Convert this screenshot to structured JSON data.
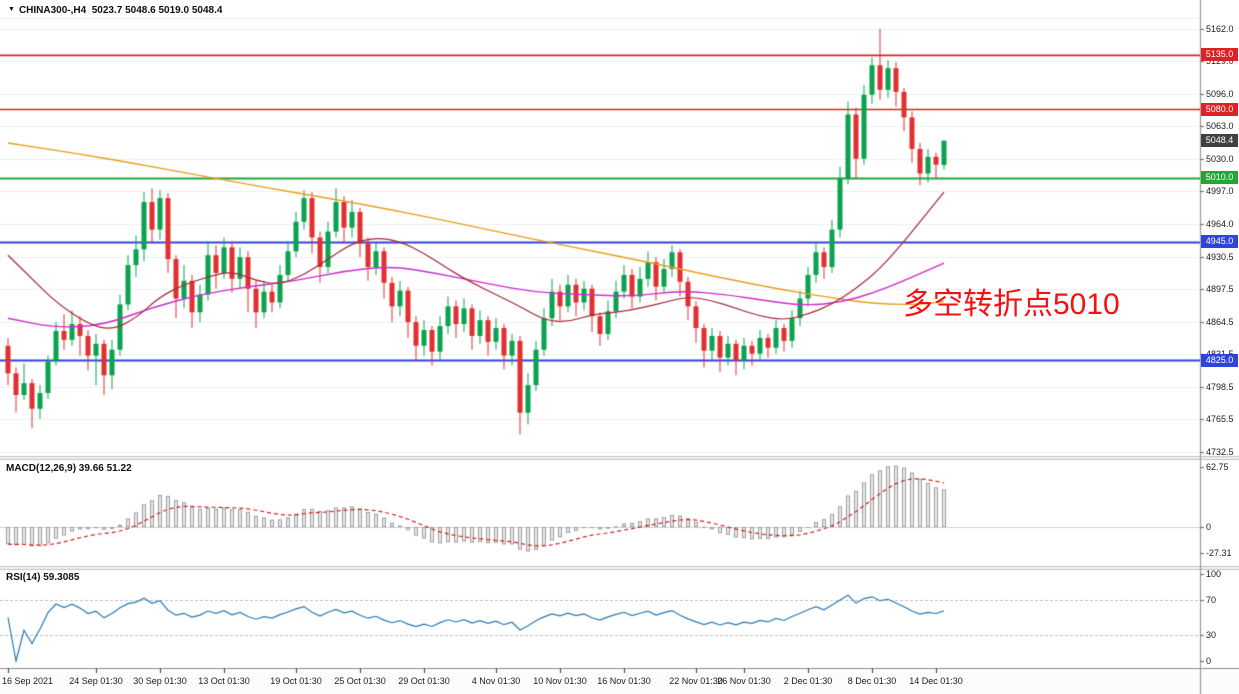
{
  "window": {
    "collapse_icon": "▼",
    "symbol_period": "CHINA300-,H4",
    "ohlc_text": "5023.7 5048.6 5019.0 5048.4"
  },
  "annotation": {
    "text": "多空转折点5010",
    "color": "#f31111"
  },
  "colors": {
    "up": "#0aa34f",
    "down": "#e03030",
    "ma_fast": "#a52a3a",
    "ma_mid": "#cc2ecc",
    "ma_slow": "#e8a020",
    "macd_bar_fill": "#e8e8e8",
    "macd_bar_stroke": "#a0a0a0",
    "macd_signal": "#d42222",
    "rsi_line": "#2a7ab5",
    "grid": "#efefef",
    "axis_border": "#9a9a9a",
    "divider_fill": "#f0f0f0",
    "divider_edge": "#c4c4c4",
    "current_badge": "#404040"
  },
  "main_panel": {
    "price_ticks": [
      "5162.0",
      "5129.0",
      "5096.0",
      "5063.0",
      "5030.0",
      "4997.0",
      "4964.0",
      "4930.5",
      "4897.5",
      "4864.5",
      "4831.5",
      "4798.5",
      "4765.5",
      "4732.5"
    ],
    "hlines": [
      {
        "price": 5135.0,
        "label": "5135.0",
        "color": "#dd2222",
        "width": 1.6
      },
      {
        "price": 5080.0,
        "label": "5080.0",
        "color": "#dd2222",
        "width": 1.6
      },
      {
        "price": 5010.0,
        "label": "5010.0",
        "color": "#22a832",
        "width": 2
      },
      {
        "price": 4945.0,
        "label": "4945.0",
        "color": "#2f43dd",
        "width": 2
      },
      {
        "price": 4825.0,
        "label": "4825.0",
        "color": "#2f43dd",
        "width": 2
      }
    ],
    "current_price": {
      "value": 5048.4,
      "label": "5048.4"
    }
  },
  "macd_panel": {
    "title": "MACD(12,26,9) 39.66 51.22",
    "ticks": [
      {
        "label": "62.75",
        "value": 62.75
      },
      {
        "label": "0",
        "value": 0
      },
      {
        "label": "-27.31",
        "value": -27.31
      }
    ]
  },
  "rsi_panel": {
    "title": "RSI(14) 59.3085",
    "ticks": [
      {
        "label": "100",
        "value": 100
      },
      {
        "label": "70",
        "value": 70
      },
      {
        "label": "30",
        "value": 30
      },
      {
        "label": "0",
        "value": 0
      }
    ],
    "levels": [
      70,
      30
    ]
  },
  "time_axis": {
    "labels": [
      {
        "text": "16 Sep 2021",
        "index": 0
      },
      {
        "text": "24 Sep 01:30",
        "index": 11
      },
      {
        "text": "30 Sep 01:30",
        "index": 19
      },
      {
        "text": "13 Oct 01:30",
        "index": 27
      },
      {
        "text": "19 Oct 01:30",
        "index": 36
      },
      {
        "text": "25 Oct 01:30",
        "index": 44
      },
      {
        "text": "29 Oct 01:30",
        "index": 52
      },
      {
        "text": "4 Nov 01:30",
        "index": 61
      },
      {
        "text": "10 Nov 01:30",
        "index": 69
      },
      {
        "text": "16 Nov 01:30",
        "index": 77
      },
      {
        "text": "22 Nov 01:30",
        "index": 86
      },
      {
        "text": "26 Nov 01:30",
        "index": 92
      },
      {
        "text": "2 Dec 01:30",
        "index": 100
      },
      {
        "text": "8 Dec 01:30",
        "index": 108
      },
      {
        "text": "14 Dec 01:30",
        "index": 116
      }
    ]
  },
  "chart_data": {
    "type": "candlestick",
    "symbol": "CHINA300-",
    "timeframe": "H4",
    "title": "CHINA300-,H4",
    "ohlc_current": {
      "open": 5023.7,
      "high": 5048.6,
      "low": 5019.0,
      "close": 5048.4
    },
    "y_axis_range": [
      4728,
      5173
    ],
    "macd_axis": {
      "max": 62.75,
      "min": -27.31,
      "current_macd": 39.66,
      "current_signal": 51.22
    },
    "rsi_axis": {
      "max": 100,
      "min": 0,
      "current": 59.3085
    },
    "candles": [
      [
        4840,
        4848,
        4800,
        4812
      ],
      [
        4812,
        4818,
        4772,
        4790
      ],
      [
        4790,
        4822,
        4785,
        4802
      ],
      [
        4802,
        4806,
        4756,
        4776
      ],
      [
        4776,
        4800,
        4766,
        4792
      ],
      [
        4792,
        4830,
        4786,
        4824
      ],
      [
        4824,
        4864,
        4820,
        4855
      ],
      [
        4855,
        4872,
        4836,
        4846
      ],
      [
        4846,
        4876,
        4840,
        4862
      ],
      [
        4862,
        4870,
        4830,
        4850
      ],
      [
        4850,
        4856,
        4815,
        4830
      ],
      [
        4830,
        4852,
        4800,
        4842
      ],
      [
        4842,
        4846,
        4790,
        4810
      ],
      [
        4810,
        4846,
        4796,
        4836
      ],
      [
        4836,
        4892,
        4830,
        4882
      ],
      [
        4882,
        4932,
        4876,
        4922
      ],
      [
        4922,
        4952,
        4910,
        4938
      ],
      [
        4938,
        4996,
        4926,
        4986
      ],
      [
        4986,
        5000,
        4944,
        4958
      ],
      [
        4958,
        4998,
        4948,
        4990
      ],
      [
        4990,
        4995,
        4914,
        4928
      ],
      [
        4928,
        4932,
        4868,
        4888
      ],
      [
        4888,
        4922,
        4878,
        4906
      ],
      [
        4906,
        4912,
        4858,
        4874
      ],
      [
        4874,
        4902,
        4864,
        4892
      ],
      [
        4892,
        4946,
        4886,
        4932
      ],
      [
        4932,
        4942,
        4898,
        4914
      ],
      [
        4914,
        4950,
        4908,
        4940
      ],
      [
        4940,
        4946,
        4894,
        4908
      ],
      [
        4908,
        4940,
        4898,
        4930
      ],
      [
        4930,
        4936,
        4874,
        4898
      ],
      [
        4898,
        4906,
        4858,
        4874
      ],
      [
        4874,
        4906,
        4868,
        4895
      ],
      [
        4895,
        4902,
        4874,
        4884
      ],
      [
        4884,
        4922,
        4878,
        4912
      ],
      [
        4912,
        4946,
        4906,
        4936
      ],
      [
        4936,
        4976,
        4930,
        4966
      ],
      [
        4966,
        4998,
        4958,
        4990
      ],
      [
        4990,
        4996,
        4934,
        4950
      ],
      [
        4950,
        4956,
        4904,
        4920
      ],
      [
        4920,
        4966,
        4914,
        4956
      ],
      [
        4956,
        5000,
        4950,
        4986
      ],
      [
        4986,
        4992,
        4944,
        4960
      ],
      [
        4960,
        4988,
        4950,
        4976
      ],
      [
        4976,
        4980,
        4930,
        4944
      ],
      [
        4944,
        4950,
        4906,
        4920
      ],
      [
        4920,
        4945,
        4912,
        4936
      ],
      [
        4936,
        4940,
        4888,
        4904
      ],
      [
        4904,
        4910,
        4864,
        4880
      ],
      [
        4880,
        4906,
        4870,
        4896
      ],
      [
        4896,
        4900,
        4848,
        4864
      ],
      [
        4864,
        4870,
        4824,
        4840
      ],
      [
        4840,
        4866,
        4830,
        4856
      ],
      [
        4856,
        4860,
        4820,
        4834
      ],
      [
        4834,
        4870,
        4826,
        4860
      ],
      [
        4860,
        4890,
        4852,
        4880
      ],
      [
        4880,
        4886,
        4848,
        4862
      ],
      [
        4862,
        4888,
        4854,
        4878
      ],
      [
        4878,
        4882,
        4836,
        4850
      ],
      [
        4850,
        4876,
        4842,
        4866
      ],
      [
        4866,
        4870,
        4830,
        4844
      ],
      [
        4844,
        4868,
        4836,
        4858
      ],
      [
        4858,
        4862,
        4816,
        4830
      ],
      [
        4830,
        4852,
        4820,
        4845
      ],
      [
        4845,
        4850,
        4750,
        4772
      ],
      [
        4772,
        4812,
        4760,
        4800
      ],
      [
        4800,
        4845,
        4794,
        4836
      ],
      [
        4836,
        4878,
        4830,
        4868
      ],
      [
        4868,
        4908,
        4860,
        4895
      ],
      [
        4895,
        4902,
        4866,
        4880
      ],
      [
        4880,
        4912,
        4874,
        4902
      ],
      [
        4902,
        4908,
        4870,
        4884
      ],
      [
        4884,
        4906,
        4876,
        4898
      ],
      [
        4898,
        4902,
        4854,
        4870
      ],
      [
        4870,
        4874,
        4840,
        4852
      ],
      [
        4852,
        4886,
        4846,
        4875
      ],
      [
        4875,
        4906,
        4868,
        4895
      ],
      [
        4895,
        4922,
        4888,
        4912
      ],
      [
        4912,
        4918,
        4878,
        4890
      ],
      [
        4890,
        4920,
        4884,
        4908
      ],
      [
        4908,
        4936,
        4900,
        4925
      ],
      [
        4925,
        4930,
        4886,
        4900
      ],
      [
        4900,
        4928,
        4894,
        4918
      ],
      [
        4918,
        4942,
        4910,
        4935
      ],
      [
        4935,
        4938,
        4890,
        4905
      ],
      [
        4905,
        4910,
        4866,
        4880
      ],
      [
        4880,
        4885,
        4843,
        4858
      ],
      [
        4858,
        4862,
        4818,
        4835
      ],
      [
        4835,
        4858,
        4826,
        4850
      ],
      [
        4850,
        4855,
        4813,
        4828
      ],
      [
        4828,
        4850,
        4820,
        4842
      ],
      [
        4842,
        4846,
        4810,
        4825
      ],
      [
        4825,
        4848,
        4816,
        4840
      ],
      [
        4840,
        4845,
        4820,
        4832
      ],
      [
        4832,
        4856,
        4826,
        4848
      ],
      [
        4848,
        4852,
        4828,
        4838
      ],
      [
        4838,
        4866,
        4832,
        4858
      ],
      [
        4858,
        4862,
        4834,
        4845
      ],
      [
        4845,
        4876,
        4838,
        4868
      ],
      [
        4868,
        4896,
        4860,
        4888
      ],
      [
        4888,
        4920,
        4880,
        4912
      ],
      [
        4912,
        4944,
        4904,
        4935
      ],
      [
        4935,
        4940,
        4908,
        4920
      ],
      [
        4920,
        4968,
        4914,
        4958
      ],
      [
        4958,
        5022,
        4950,
        5010
      ],
      [
        5010,
        5088,
        5004,
        5075
      ],
      [
        5075,
        5082,
        5010,
        5030
      ],
      [
        5030,
        5105,
        5024,
        5095
      ],
      [
        5095,
        5133,
        5086,
        5125
      ],
      [
        5125,
        5162,
        5090,
        5100
      ],
      [
        5100,
        5130,
        5092,
        5122
      ],
      [
        5122,
        5128,
        5083,
        5098
      ],
      [
        5098,
        5102,
        5058,
        5072
      ],
      [
        5072,
        5078,
        5026,
        5040
      ],
      [
        5040,
        5046,
        5003,
        5015
      ],
      [
        5015,
        5040,
        5006,
        5032
      ],
      [
        5032,
        5036,
        5010,
        5024
      ],
      [
        5023.7,
        5048.6,
        5019.0,
        5048.4
      ]
    ],
    "ma_slow_points": [
      [
        0,
        5046
      ],
      [
        8,
        5036
      ],
      [
        16,
        5025
      ],
      [
        24,
        5013
      ],
      [
        32,
        5001
      ],
      [
        40,
        4990
      ],
      [
        48,
        4978
      ],
      [
        56,
        4965
      ],
      [
        64,
        4951
      ],
      [
        72,
        4938
      ],
      [
        80,
        4925
      ],
      [
        88,
        4911
      ],
      [
        96,
        4898
      ],
      [
        102,
        4890
      ],
      [
        106,
        4885
      ],
      [
        110,
        4882
      ],
      [
        114,
        4882
      ],
      [
        117,
        4885
      ]
    ],
    "ma_mid_points": [
      [
        0,
        4868
      ],
      [
        6,
        4858
      ],
      [
        12,
        4861
      ],
      [
        18,
        4879
      ],
      [
        24,
        4892
      ],
      [
        30,
        4900
      ],
      [
        36,
        4906
      ],
      [
        42,
        4916
      ],
      [
        48,
        4921
      ],
      [
        54,
        4913
      ],
      [
        60,
        4903
      ],
      [
        66,
        4894
      ],
      [
        72,
        4892
      ],
      [
        78,
        4890
      ],
      [
        84,
        4896
      ],
      [
        90,
        4892
      ],
      [
        96,
        4884
      ],
      [
        100,
        4881
      ],
      [
        104,
        4884
      ],
      [
        108,
        4893
      ],
      [
        112,
        4906
      ],
      [
        117,
        4924
      ]
    ],
    "ma_fast_points": [
      [
        0,
        4932
      ],
      [
        3,
        4908
      ],
      [
        6,
        4884
      ],
      [
        10,
        4862
      ],
      [
        13,
        4856
      ],
      [
        16,
        4868
      ],
      [
        19,
        4890
      ],
      [
        22,
        4902
      ],
      [
        25,
        4910
      ],
      [
        28,
        4916
      ],
      [
        31,
        4906
      ],
      [
        34,
        4902
      ],
      [
        37,
        4912
      ],
      [
        40,
        4928
      ],
      [
        43,
        4944
      ],
      [
        46,
        4950
      ],
      [
        49,
        4946
      ],
      [
        52,
        4934
      ],
      [
        55,
        4918
      ],
      [
        58,
        4904
      ],
      [
        61,
        4892
      ],
      [
        64,
        4880
      ],
      [
        67,
        4866
      ],
      [
        70,
        4864
      ],
      [
        73,
        4872
      ],
      [
        76,
        4874
      ],
      [
        79,
        4878
      ],
      [
        82,
        4884
      ],
      [
        85,
        4890
      ],
      [
        88,
        4886
      ],
      [
        91,
        4878
      ],
      [
        94,
        4870
      ],
      [
        97,
        4866
      ],
      [
        100,
        4872
      ],
      [
        103,
        4882
      ],
      [
        106,
        4898
      ],
      [
        109,
        4918
      ],
      [
        112,
        4946
      ],
      [
        114,
        4966
      ],
      [
        117,
        4996
      ]
    ]
  }
}
